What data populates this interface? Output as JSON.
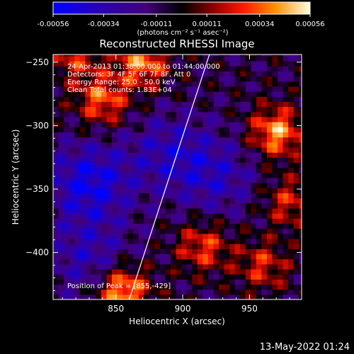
{
  "chart_data": {
    "type": "heatmap",
    "title": "Reconstructed RHESSI Image",
    "xlabel": "Heliocentric X (arcsec)",
    "ylabel": "Heliocentric Y (arcsec)",
    "xlim": [
      803,
      989
    ],
    "ylim": [
      -437,
      -244
    ],
    "x_ticks": [
      850,
      900,
      950
    ],
    "y_ticks": [
      -250,
      -300,
      -350,
      -400
    ],
    "colorbar": {
      "range": [
        -0.00056,
        0.00056
      ],
      "tick_values": [
        -0.00056,
        -0.00034,
        -0.00011,
        0.00011,
        0.00034,
        0.00056
      ],
      "tick_labels": [
        "-0.00056",
        "-0.00034",
        "-0.00011",
        "0.00011",
        "0.00034",
        "0.00056"
      ],
      "unit": "(photons cm⁻² s⁻¹ asec⁻²)"
    },
    "annotations": [
      "24-Apr-2013 01:38:00.000 to 01:44:00.000",
      "Detectors: 3F 4F 5F 6F 7F 8F, Att 0",
      "Energy Range: 25.0 - 50.0 keV",
      "Clean     Total counts: 1.83E+04",
      "Position of Peak = [855,-429]"
    ],
    "limb_line": [
      [
        920,
        -244
      ],
      [
        860,
        -437
      ]
    ],
    "bright_sources": [
      {
        "x": 855,
        "y": -430,
        "value": 0.00056
      },
      {
        "x": 970,
        "y": -305,
        "value": 0.0005
      },
      {
        "x": 870,
        "y": -250,
        "value": 0.00045
      },
      {
        "x": 840,
        "y": -280,
        "value": 0.0004
      },
      {
        "x": 915,
        "y": -395,
        "value": 0.00035
      },
      {
        "x": 820,
        "y": -245,
        "value": 0.0003
      },
      {
        "x": 960,
        "y": -410,
        "value": 0.0003
      },
      {
        "x": 980,
        "y": -360,
        "value": 0.0003
      }
    ],
    "dim_regions": [
      {
        "x": 830,
        "y": -345,
        "value": -0.0004
      },
      {
        "x": 890,
        "y": -320,
        "value": -0.00025
      },
      {
        "x": 830,
        "y": -405,
        "value": -0.00025
      },
      {
        "x": 925,
        "y": -340,
        "value": -0.00025
      }
    ]
  },
  "footer": {
    "timestamp": "13-May-2022 01:24"
  }
}
